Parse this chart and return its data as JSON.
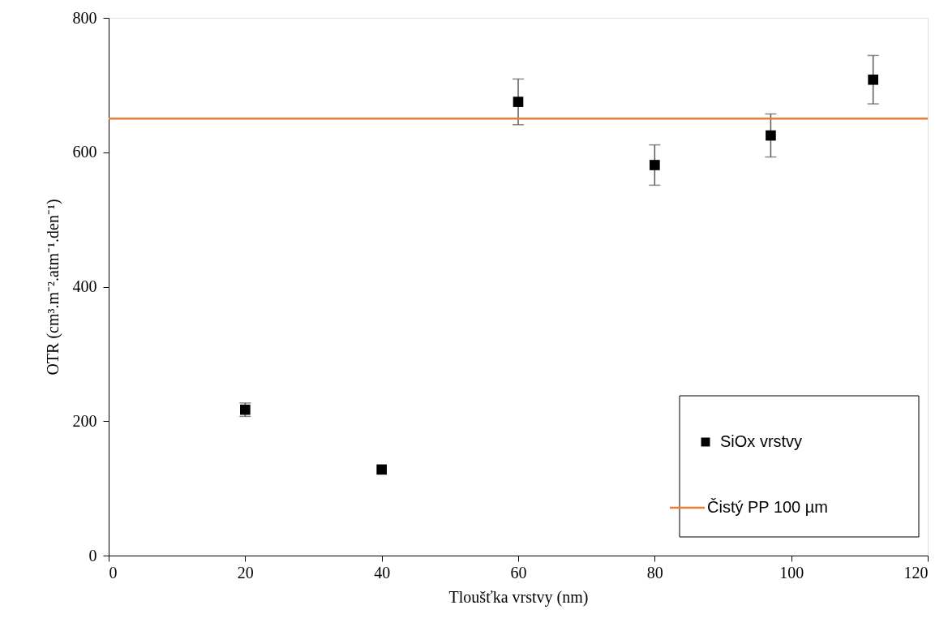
{
  "chart_data": {
    "type": "scatter",
    "xlabel": "Tloušťka vrstvy (nm)",
    "ylabel": "OTR (cm³.m⁻².atm⁻¹.den⁻¹)",
    "xlim": [
      0,
      120
    ],
    "xticks": [
      0,
      20,
      40,
      60,
      80,
      100,
      120
    ],
    "ylim": [
      0,
      800
    ],
    "yticks": [
      0,
      200,
      400,
      600,
      800
    ],
    "grid": false,
    "legend": "bottom right",
    "series": [
      {
        "name": "SiOx vrstvy",
        "marker": "square",
        "color": "#000000",
        "x": [
          20,
          40,
          60,
          80,
          97,
          112
        ],
        "values": [
          217,
          128,
          675,
          581,
          625,
          708
        ],
        "errors": [
          10,
          null,
          34,
          30,
          32,
          36
        ]
      },
      {
        "name": "Čistý PP 100 µm",
        "type": "line",
        "marker": "none",
        "color": "#ed7d31",
        "x": [
          0,
          120
        ],
        "values": [
          650,
          650
        ]
      }
    ]
  }
}
